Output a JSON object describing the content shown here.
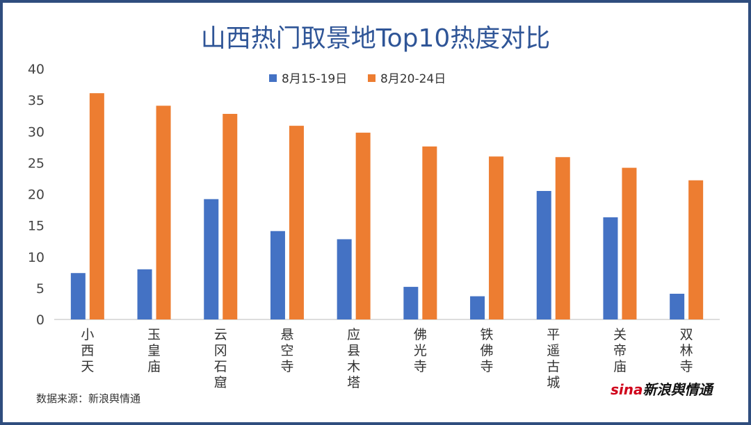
{
  "chart_data": {
    "type": "bar",
    "title": "山西热门取景地Top10热度对比",
    "categories": [
      "小西天",
      "玉皇庙",
      "云冈石窟",
      "悬空寺",
      "应县木塔",
      "佛光寺",
      "铁佛寺",
      "平遥古城",
      "关帝庙",
      "双林寺"
    ],
    "series": [
      {
        "name": "8月15-19日",
        "color": "#4472c4",
        "values": [
          7.4,
          8.0,
          19.2,
          14.1,
          12.8,
          5.2,
          3.7,
          20.5,
          16.3,
          4.1
        ]
      },
      {
        "name": "8月20-24日",
        "color": "#ed7d31",
        "values": [
          36.1,
          34.1,
          32.8,
          30.9,
          29.8,
          27.6,
          26.0,
          25.9,
          24.2,
          22.2
        ]
      }
    ],
    "ylim": [
      0,
      40
    ],
    "yticks": [
      0,
      5,
      10,
      15,
      20,
      25,
      30,
      35,
      40
    ],
    "legend": "top-center",
    "grid": false,
    "xlabel": "",
    "ylabel": ""
  },
  "source": "数据来源：新浪舆情通",
  "logo": {
    "brand": "sina",
    "text": "新浪舆情通"
  }
}
